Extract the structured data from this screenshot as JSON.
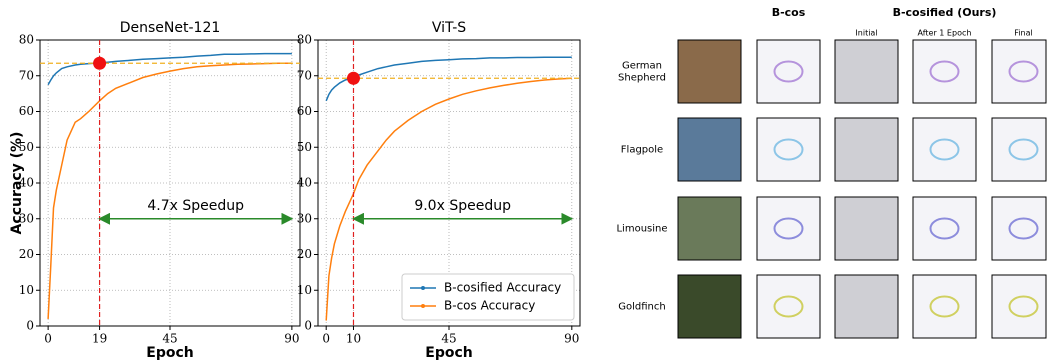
{
  "chart_data": [
    {
      "type": "line",
      "title": "DenseNet-121",
      "x_label": "Epoch",
      "y_label": "Accuracy (%)",
      "x": [
        0,
        1,
        2,
        3,
        5,
        7,
        10,
        12,
        15,
        19,
        22,
        25,
        30,
        35,
        40,
        45,
        50,
        55,
        60,
        65,
        70,
        75,
        80,
        85,
        90
      ],
      "series": [
        {
          "color": "#1f77b4",
          "values": [
            67.5,
            68.8,
            70,
            70.8,
            72,
            72.5,
            73,
            73.2,
            73.4,
            73.6,
            73.8,
            74,
            74.3,
            74.6,
            74.8,
            75,
            75.2,
            75.5,
            75.7,
            76,
            76,
            76.1,
            76.2,
            76.2,
            76.2
          ]
        },
        {
          "color": "#ff7f0e",
          "values": [
            2,
            17,
            33,
            38,
            45,
            52,
            57,
            58,
            60,
            63,
            65,
            66.5,
            68,
            69.5,
            70.5,
            71.3,
            72,
            72.5,
            72.8,
            73,
            73.2,
            73.3,
            73.4,
            73.5,
            73.5
          ]
        }
      ],
      "xlim": [
        -3,
        93
      ],
      "ylim": [
        0,
        80
      ],
      "xticks": [
        0,
        19,
        45,
        90
      ],
      "yticks": [
        0,
        10,
        20,
        30,
        40,
        50,
        60,
        70,
        80
      ],
      "grid": true,
      "reference_x": 19,
      "reference_y": 73.5,
      "annotation": {
        "text": "4.7x Speedup",
        "x": [
          19,
          90
        ],
        "y": 30
      }
    },
    {
      "type": "line",
      "title": "ViT-S",
      "x_label": "Epoch",
      "x": [
        0,
        1,
        2,
        3,
        5,
        7,
        10,
        12,
        15,
        19,
        22,
        25,
        30,
        35,
        40,
        45,
        50,
        55,
        60,
        65,
        70,
        75,
        80,
        85,
        90
      ],
      "series": [
        {
          "name": "B-cosified Accuracy",
          "color": "#1f77b4",
          "values": [
            63,
            64.8,
            66,
            66.8,
            68,
            68.8,
            69.5,
            70.2,
            71,
            72,
            72.5,
            73,
            73.5,
            74,
            74.3,
            74.5,
            74.7,
            74.8,
            75,
            75,
            75.1,
            75.1,
            75.2,
            75.2,
            75.2
          ]
        },
        {
          "name": "B-cos Accuracy",
          "color": "#ff7f0e",
          "values": [
            1.5,
            14,
            19,
            23,
            28,
            32,
            37,
            41,
            45,
            49,
            52,
            54.5,
            57.5,
            60,
            62,
            63.5,
            64.8,
            65.8,
            66.6,
            67.3,
            67.9,
            68.4,
            68.8,
            69.1,
            69.3
          ]
        }
      ],
      "xlim": [
        -3,
        93
      ],
      "ylim": [
        0,
        80
      ],
      "xticks": [
        0,
        10,
        45,
        90
      ],
      "yticks": [
        0,
        10,
        20,
        30,
        40,
        50,
        60,
        70,
        80
      ],
      "grid": true,
      "legend": "lower right",
      "reference_x": 10,
      "reference_y": 69.3,
      "annotation": {
        "text": "9.0x Speedup",
        "x": [
          10,
          90
        ],
        "y": 30
      }
    }
  ],
  "image_grid": {
    "headers": [
      "B-cos",
      "B-cosified (Ours)"
    ],
    "subheaders": [
      "Initial",
      "After 1 Epoch",
      "Final"
    ],
    "rows": [
      "German Shepherd",
      "Flagpole",
      "Limousine",
      "Goldfinch"
    ]
  }
}
